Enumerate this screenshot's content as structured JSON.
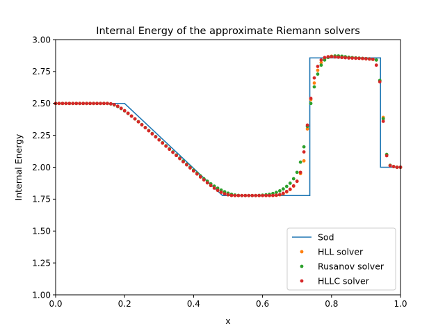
{
  "chart_data": {
    "type": "line",
    "title": "Internal Energy of the approximate Riemann solvers",
    "xlabel": "x",
    "ylabel": "Internal Energy",
    "xlim": [
      0.0,
      1.0
    ],
    "ylim": [
      1.0,
      3.0
    ],
    "xticks": [
      0.0,
      0.2,
      0.4,
      0.6,
      0.8,
      1.0
    ],
    "xtick_labels": [
      "0.0",
      "0.2",
      "0.4",
      "0.6",
      "0.8",
      "1.0"
    ],
    "yticks": [
      1.0,
      1.25,
      1.5,
      1.75,
      2.0,
      2.25,
      2.5,
      2.75,
      3.0
    ],
    "ytick_labels": [
      "1.00",
      "1.25",
      "1.50",
      "1.75",
      "2.00",
      "2.25",
      "2.50",
      "2.75",
      "3.00"
    ],
    "grid": false,
    "legend_position": "lower-right",
    "colors": {
      "Sod": "#1f77b4",
      "HLL solver": "#ff7f0e",
      "Rusanov solver": "#2ca02c",
      "HLLC solver": "#d62728"
    },
    "series": [
      {
        "name": "Sod",
        "style": "line",
        "x": [
          0.0,
          0.2,
          0.484,
          0.737,
          0.737,
          0.942,
          0.942,
          1.0
        ],
        "y": [
          2.5,
          2.5,
          1.778,
          1.778,
          2.857,
          2.857,
          2.0,
          2.0
        ]
      },
      {
        "name": "HLL solver",
        "style": "markers",
        "x": [
          0.0,
          0.01,
          0.02,
          0.03,
          0.04,
          0.05,
          0.06,
          0.07,
          0.08,
          0.09,
          0.1,
          0.11,
          0.12,
          0.13,
          0.14,
          0.15,
          0.16,
          0.17,
          0.18,
          0.19,
          0.2,
          0.21,
          0.22,
          0.23,
          0.24,
          0.25,
          0.26,
          0.27,
          0.28,
          0.29,
          0.3,
          0.31,
          0.32,
          0.33,
          0.34,
          0.35,
          0.36,
          0.37,
          0.38,
          0.39,
          0.4,
          0.41,
          0.42,
          0.43,
          0.44,
          0.45,
          0.46,
          0.47,
          0.48,
          0.49,
          0.5,
          0.51,
          0.52,
          0.53,
          0.54,
          0.55,
          0.56,
          0.57,
          0.58,
          0.59,
          0.6,
          0.61,
          0.62,
          0.63,
          0.64,
          0.65,
          0.66,
          0.67,
          0.68,
          0.69,
          0.7,
          0.71,
          0.72,
          0.73,
          0.74,
          0.75,
          0.76,
          0.77,
          0.78,
          0.79,
          0.8,
          0.81,
          0.82,
          0.83,
          0.84,
          0.85,
          0.86,
          0.87,
          0.88,
          0.89,
          0.9,
          0.91,
          0.92,
          0.93,
          0.94,
          0.95,
          0.96,
          0.97,
          0.98,
          0.99,
          1.0
        ],
        "y": [
          2.5,
          2.5,
          2.5,
          2.5,
          2.5,
          2.5,
          2.5,
          2.5,
          2.5,
          2.5,
          2.5,
          2.5,
          2.5,
          2.5,
          2.5,
          2.5,
          2.497,
          2.49,
          2.478,
          2.462,
          2.443,
          2.423,
          2.401,
          2.379,
          2.356,
          2.333,
          2.31,
          2.286,
          2.262,
          2.238,
          2.214,
          2.19,
          2.165,
          2.141,
          2.117,
          2.092,
          2.068,
          2.043,
          2.019,
          1.995,
          1.971,
          1.947,
          1.924,
          1.901,
          1.878,
          1.857,
          1.837,
          1.819,
          1.804,
          1.792,
          1.784,
          1.78,
          1.778,
          1.778,
          1.778,
          1.778,
          1.778,
          1.778,
          1.778,
          1.778,
          1.778,
          1.778,
          1.778,
          1.778,
          1.78,
          1.784,
          1.792,
          1.806,
          1.825,
          1.852,
          1.89,
          1.95,
          2.05,
          2.3,
          2.53,
          2.66,
          2.76,
          2.82,
          2.85,
          2.865,
          2.87,
          2.87,
          2.868,
          2.865,
          2.862,
          2.86,
          2.858,
          2.856,
          2.854,
          2.852,
          2.85,
          2.848,
          2.845,
          2.84,
          2.68,
          2.39,
          2.1,
          2.015,
          2.005,
          2.0,
          2.0
        ]
      },
      {
        "name": "Rusanov solver",
        "style": "markers",
        "x": [
          0.0,
          0.01,
          0.02,
          0.03,
          0.04,
          0.05,
          0.06,
          0.07,
          0.08,
          0.09,
          0.1,
          0.11,
          0.12,
          0.13,
          0.14,
          0.15,
          0.16,
          0.17,
          0.18,
          0.19,
          0.2,
          0.21,
          0.22,
          0.23,
          0.24,
          0.25,
          0.26,
          0.27,
          0.28,
          0.29,
          0.3,
          0.31,
          0.32,
          0.33,
          0.34,
          0.35,
          0.36,
          0.37,
          0.38,
          0.39,
          0.4,
          0.41,
          0.42,
          0.43,
          0.44,
          0.45,
          0.46,
          0.47,
          0.48,
          0.49,
          0.5,
          0.51,
          0.52,
          0.53,
          0.54,
          0.55,
          0.56,
          0.57,
          0.58,
          0.59,
          0.6,
          0.61,
          0.62,
          0.63,
          0.64,
          0.65,
          0.66,
          0.67,
          0.68,
          0.69,
          0.7,
          0.71,
          0.72,
          0.73,
          0.74,
          0.75,
          0.76,
          0.77,
          0.78,
          0.79,
          0.8,
          0.81,
          0.82,
          0.83,
          0.84,
          0.85,
          0.86,
          0.87,
          0.88,
          0.89,
          0.9,
          0.91,
          0.92,
          0.93,
          0.94,
          0.95,
          0.96,
          0.97,
          0.98,
          0.99,
          1.0
        ],
        "y": [
          2.5,
          2.5,
          2.5,
          2.5,
          2.5,
          2.5,
          2.5,
          2.5,
          2.5,
          2.5,
          2.5,
          2.5,
          2.5,
          2.5,
          2.5,
          2.5,
          2.496,
          2.488,
          2.476,
          2.46,
          2.442,
          2.422,
          2.401,
          2.379,
          2.357,
          2.334,
          2.311,
          2.288,
          2.264,
          2.24,
          2.216,
          2.192,
          2.168,
          2.144,
          2.12,
          2.096,
          2.072,
          2.048,
          2.024,
          2.0,
          1.977,
          1.954,
          1.932,
          1.91,
          1.89,
          1.87,
          1.852,
          1.836,
          1.821,
          1.808,
          1.797,
          1.788,
          1.782,
          1.779,
          1.778,
          1.778,
          1.778,
          1.778,
          1.778,
          1.779,
          1.781,
          1.784,
          1.788,
          1.794,
          1.803,
          1.815,
          1.83,
          1.85,
          1.875,
          1.91,
          1.96,
          2.04,
          2.16,
          2.32,
          2.5,
          2.63,
          2.73,
          2.8,
          2.84,
          2.86,
          2.868,
          2.872,
          2.872,
          2.87,
          2.866,
          2.862,
          2.859,
          2.857,
          2.855,
          2.853,
          2.851,
          2.849,
          2.846,
          2.84,
          2.68,
          2.38,
          2.1,
          2.015,
          2.005,
          2.0,
          2.0
        ]
      },
      {
        "name": "HLLC solver",
        "style": "markers",
        "x": [
          0.0,
          0.01,
          0.02,
          0.03,
          0.04,
          0.05,
          0.06,
          0.07,
          0.08,
          0.09,
          0.1,
          0.11,
          0.12,
          0.13,
          0.14,
          0.15,
          0.16,
          0.17,
          0.18,
          0.19,
          0.2,
          0.21,
          0.22,
          0.23,
          0.24,
          0.25,
          0.26,
          0.27,
          0.28,
          0.29,
          0.3,
          0.31,
          0.32,
          0.33,
          0.34,
          0.35,
          0.36,
          0.37,
          0.38,
          0.39,
          0.4,
          0.41,
          0.42,
          0.43,
          0.44,
          0.45,
          0.46,
          0.47,
          0.48,
          0.49,
          0.5,
          0.51,
          0.52,
          0.53,
          0.54,
          0.55,
          0.56,
          0.57,
          0.58,
          0.59,
          0.6,
          0.61,
          0.62,
          0.63,
          0.64,
          0.65,
          0.66,
          0.67,
          0.68,
          0.69,
          0.7,
          0.71,
          0.72,
          0.73,
          0.74,
          0.75,
          0.76,
          0.77,
          0.78,
          0.79,
          0.8,
          0.81,
          0.82,
          0.83,
          0.84,
          0.85,
          0.86,
          0.87,
          0.88,
          0.89,
          0.9,
          0.91,
          0.92,
          0.93,
          0.94,
          0.95,
          0.96,
          0.97,
          0.98,
          0.99,
          1.0
        ],
        "y": [
          2.5,
          2.5,
          2.5,
          2.5,
          2.5,
          2.5,
          2.5,
          2.5,
          2.5,
          2.5,
          2.5,
          2.5,
          2.5,
          2.5,
          2.5,
          2.5,
          2.497,
          2.49,
          2.478,
          2.462,
          2.443,
          2.423,
          2.401,
          2.379,
          2.356,
          2.333,
          2.31,
          2.286,
          2.262,
          2.238,
          2.214,
          2.19,
          2.165,
          2.141,
          2.117,
          2.092,
          2.068,
          2.043,
          2.019,
          1.995,
          1.971,
          1.947,
          1.924,
          1.901,
          1.878,
          1.857,
          1.837,
          1.819,
          1.804,
          1.792,
          1.784,
          1.779,
          1.778,
          1.778,
          1.778,
          1.778,
          1.778,
          1.778,
          1.778,
          1.778,
          1.778,
          1.778,
          1.778,
          1.779,
          1.781,
          1.786,
          1.796,
          1.81,
          1.828,
          1.854,
          1.89,
          1.96,
          2.12,
          2.33,
          2.54,
          2.7,
          2.79,
          2.84,
          2.86,
          2.866,
          2.866,
          2.864,
          2.862,
          2.86,
          2.858,
          2.856,
          2.855,
          2.854,
          2.853,
          2.852,
          2.85,
          2.848,
          2.846,
          2.8,
          2.67,
          2.36,
          2.09,
          2.012,
          2.005,
          2.0,
          2.0
        ]
      }
    ]
  }
}
